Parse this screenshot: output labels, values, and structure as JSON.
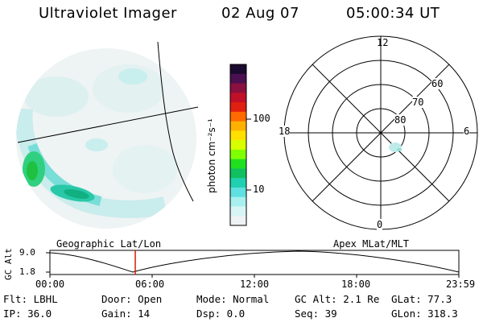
{
  "header": {
    "instrument": "Ultraviolet Imager",
    "date": "02 Aug 07",
    "time": "05:00:34 UT"
  },
  "colorbar": {
    "label": "photon cm⁻²s⁻¹",
    "ticks": [
      "100",
      "10"
    ],
    "colors": [
      "#1a0a2e",
      "#4a1050",
      "#8a1040",
      "#c01028",
      "#e02010",
      "#ff6a00",
      "#ffb000",
      "#ffe000",
      "#d8ff00",
      "#80ff00",
      "#20e020",
      "#10c060",
      "#20d0b0",
      "#60e0e0",
      "#a8f0f0",
      "#d8f4f4",
      "#eef2f2"
    ]
  },
  "polar": {
    "top_label": "12",
    "left_label": "18",
    "right_label": "6",
    "bottom_label": "0",
    "ring_labels": [
      "60",
      "70",
      "80"
    ]
  },
  "timeline": {
    "left_title": "Geographic Lat/Lon",
    "right_title": "Apex MLat/MLT",
    "y_axis_label": "GC Alt",
    "y_top": "9.0",
    "y_bottom": "1.8",
    "x_ticks": [
      "00:00",
      "06:00",
      "12:00",
      "18:00",
      "23:59"
    ],
    "marker_time_hours": 5.01
  },
  "info": {
    "flt": "Flt: LBHL",
    "ip": "IP: 36.0",
    "door": "Door: Open",
    "gain": "Gain: 14",
    "mode": "Mode: Normal",
    "dsp": "Dsp:    0.0",
    "gcalt": "GC Alt: 2.1 Re",
    "seq": "Seq: 39",
    "glat": "GLat:  77.3",
    "glon": "GLon: 318.3"
  }
}
